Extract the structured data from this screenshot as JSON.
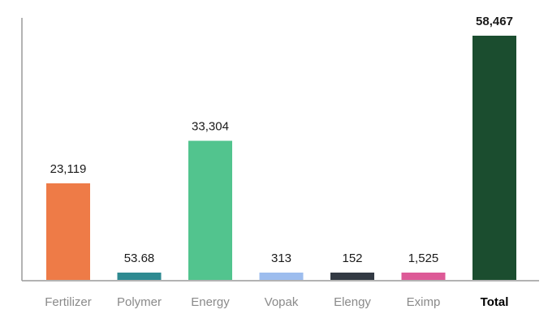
{
  "chart_data": {
    "type": "bar",
    "categories": [
      "Fertilizer",
      "Polymer",
      "Energy",
      "Vopak",
      "Elengy",
      "Eximp",
      "Total"
    ],
    "values": [
      23119,
      53.68,
      33304,
      313,
      152,
      1525,
      58467
    ],
    "value_labels": [
      "23,119",
      "53.68",
      "33,304",
      "313",
      "152",
      "1,525",
      "58,467"
    ],
    "colors": [
      "#ee7b47",
      "#2e8a91",
      "#52c48e",
      "#9dbdee",
      "#333a44",
      "#dd5a97",
      "#1b4d2f"
    ],
    "bold_categories": [
      "Total"
    ],
    "ylim": [
      0,
      58467
    ],
    "grid": false,
    "title": "",
    "xlabel": "",
    "ylabel": ""
  }
}
